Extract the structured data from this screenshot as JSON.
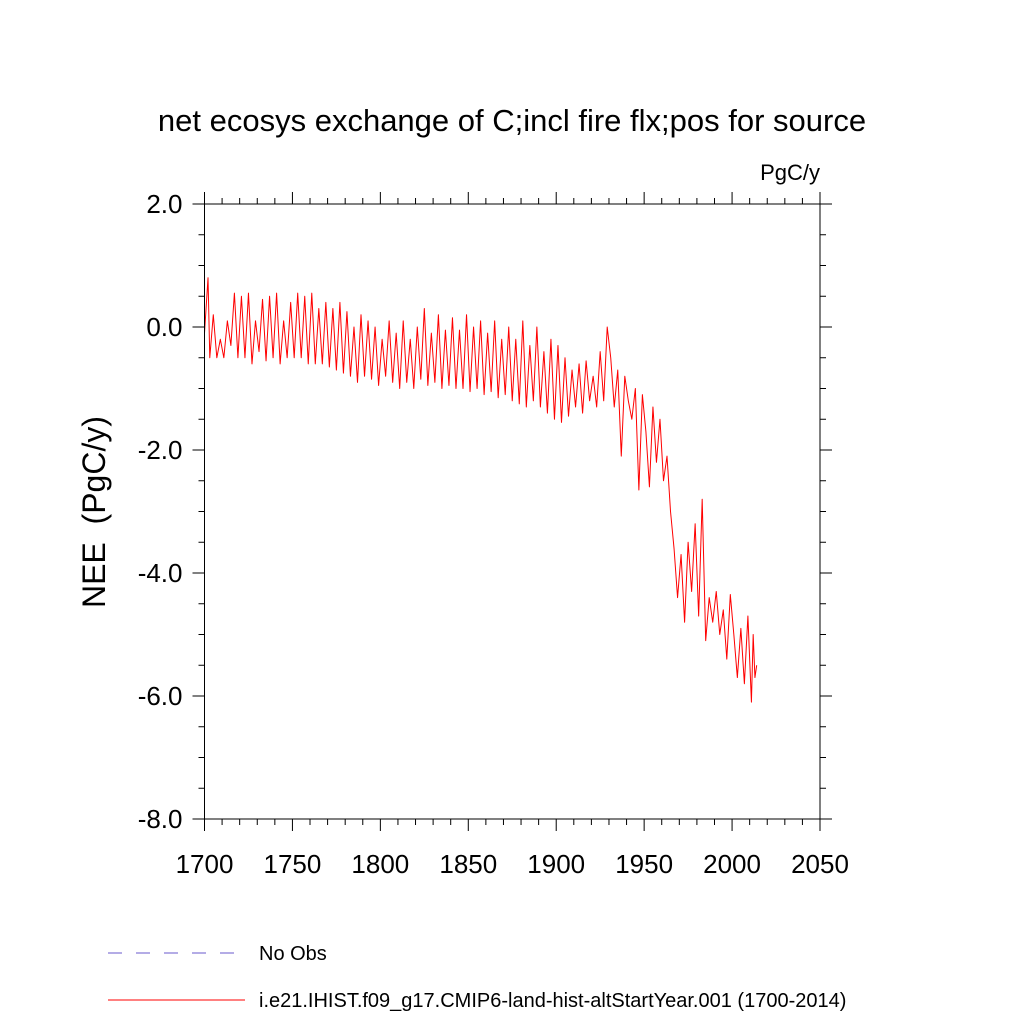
{
  "chart_data": {
    "type": "line",
    "title": "net ecosys exchange of C;incl fire flx;pos for source",
    "units": "PgC/y",
    "ylabel": "NEE  (PgC/y)",
    "xlabel": "",
    "xlim": [
      1700,
      2050
    ],
    "ylim": [
      -8.0,
      2.0
    ],
    "xticks": [
      1700,
      1750,
      1800,
      1850,
      1900,
      1950,
      2000,
      2050
    ],
    "xtick_labels": [
      "1700",
      "1750",
      "1800",
      "1850",
      "1900",
      "1950",
      "2000",
      "2050"
    ],
    "yticks": [
      2.0,
      0.0,
      -2.0,
      -4.0,
      -6.0,
      -8.0
    ],
    "ytick_labels": [
      "2.0",
      "0.0",
      "-2.0",
      "-4.0",
      "-6.0",
      "-8.0"
    ],
    "grid": false,
    "legend_position": "bottom",
    "series": [
      {
        "name": "No Obs",
        "color": "#6a5acd",
        "dash": true,
        "x": [],
        "y": []
      },
      {
        "name": "i.e21.IHIST.f09_g17.CMIP6-land-hist-altStartYear.001 (1700-2014)",
        "color": "#ff0000",
        "dash": false,
        "x": [
          1700,
          1702,
          1703,
          1705,
          1707,
          1709,
          1711,
          1713,
          1715,
          1717,
          1719,
          1721,
          1723,
          1725,
          1727,
          1729,
          1731,
          1733,
          1735,
          1737,
          1739,
          1741,
          1743,
          1745,
          1747,
          1749,
          1751,
          1753,
          1755,
          1757,
          1759,
          1761,
          1763,
          1765,
          1767,
          1769,
          1771,
          1773,
          1775,
          1777,
          1779,
          1781,
          1783,
          1785,
          1787,
          1789,
          1791,
          1793,
          1795,
          1797,
          1799,
          1801,
          1803,
          1805,
          1807,
          1809,
          1811,
          1813,
          1815,
          1817,
          1819,
          1821,
          1823,
          1825,
          1827,
          1829,
          1831,
          1833,
          1835,
          1837,
          1839,
          1841,
          1843,
          1845,
          1847,
          1849,
          1851,
          1853,
          1855,
          1857,
          1859,
          1861,
          1863,
          1865,
          1867,
          1869,
          1871,
          1873,
          1875,
          1877,
          1879,
          1881,
          1883,
          1885,
          1887,
          1889,
          1891,
          1893,
          1895,
          1897,
          1899,
          1901,
          1903,
          1905,
          1907,
          1909,
          1911,
          1913,
          1915,
          1917,
          1919,
          1921,
          1923,
          1925,
          1927,
          1929,
          1931,
          1933,
          1935,
          1937,
          1939,
          1941,
          1943,
          1945,
          1947,
          1949,
          1951,
          1953,
          1955,
          1957,
          1959,
          1961,
          1963,
          1965,
          1967,
          1969,
          1971,
          1973,
          1975,
          1977,
          1979,
          1981,
          1983,
          1985,
          1987,
          1989,
          1991,
          1993,
          1995,
          1997,
          1999,
          2001,
          2003,
          2005,
          2007,
          2009,
          2011,
          2012,
          2013,
          2014
        ],
        "y": [
          -0.1,
          0.8,
          -0.5,
          0.2,
          -0.5,
          -0.2,
          -0.5,
          0.1,
          -0.3,
          0.55,
          -0.5,
          0.5,
          -0.5,
          0.55,
          -0.6,
          0.1,
          -0.4,
          0.45,
          -0.55,
          0.5,
          -0.5,
          0.55,
          -0.6,
          0.1,
          -0.5,
          0.4,
          -0.5,
          0.55,
          -0.5,
          0.5,
          -0.6,
          0.55,
          -0.6,
          0.3,
          -0.6,
          0.4,
          -0.65,
          0.3,
          -0.7,
          0.4,
          -0.75,
          0.25,
          -0.8,
          0.0,
          -0.9,
          0.2,
          -0.8,
          0.1,
          -0.85,
          0.0,
          -0.95,
          -0.2,
          -0.8,
          0.1,
          -0.9,
          -0.1,
          -1.0,
          0.1,
          -0.9,
          -0.2,
          -1.0,
          0.0,
          -0.85,
          0.3,
          -0.95,
          -0.1,
          -0.9,
          0.2,
          -1.0,
          -0.05,
          -0.95,
          0.15,
          -1.0,
          -0.05,
          -1.0,
          0.2,
          -1.05,
          0.0,
          -1.0,
          0.1,
          -1.1,
          -0.1,
          -1.05,
          0.1,
          -1.15,
          -0.2,
          -1.1,
          0.0,
          -1.2,
          -0.2,
          -1.25,
          0.1,
          -1.3,
          -0.3,
          -1.2,
          0.0,
          -1.3,
          -0.4,
          -1.4,
          -0.2,
          -1.5,
          -0.3,
          -1.55,
          -0.5,
          -1.45,
          -0.7,
          -1.3,
          -0.6,
          -1.4,
          -0.55,
          -1.2,
          -0.8,
          -1.3,
          -0.4,
          -1.2,
          0.0,
          -0.5,
          -1.3,
          -0.7,
          -2.1,
          -0.8,
          -1.2,
          -1.5,
          -1.0,
          -2.65,
          -1.1,
          -1.7,
          -2.6,
          -1.3,
          -2.2,
          -1.5,
          -2.5,
          -2.1,
          -3.0,
          -3.6,
          -4.4,
          -3.7,
          -4.8,
          -3.5,
          -4.3,
          -3.2,
          -4.7,
          -2.8,
          -5.1,
          -4.4,
          -4.8,
          -4.3,
          -5.0,
          -4.6,
          -5.4,
          -4.35,
          -5.0,
          -5.7,
          -4.9,
          -5.8,
          -4.7,
          -6.1,
          -5.0,
          -5.7,
          -5.5
        ]
      }
    ]
  }
}
